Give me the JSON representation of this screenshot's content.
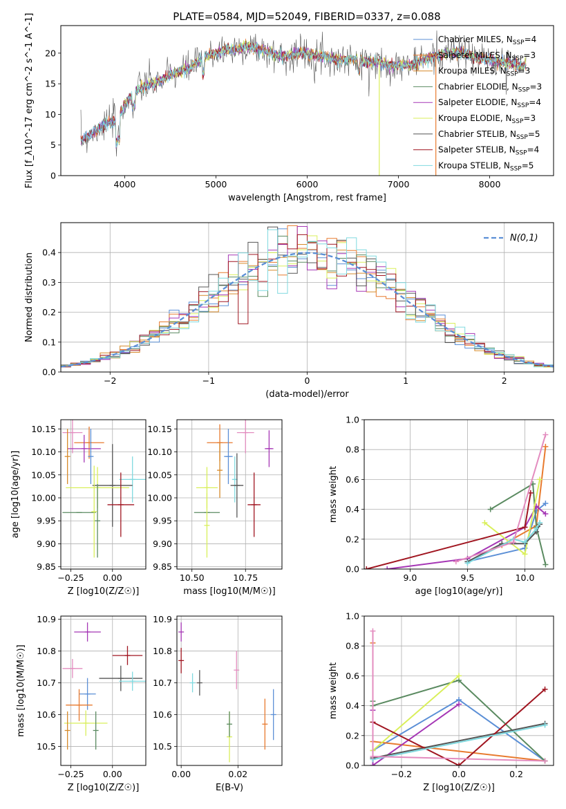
{
  "figure": {
    "title": "PLATE=0584, MJD=52049, FIBERID=0337, z=0.088"
  },
  "colors": {
    "chabrier_miles": "#5b8fd6",
    "salpeter_miles": "#e87a2e",
    "kroupa_miles": "#d68a2a",
    "chabrier_elodie": "#5a8a60",
    "salpeter_elodie": "#a536b5",
    "kroupa_elodie": "#d9ef5a",
    "chabrier_stelib": "#555555",
    "salpeter_stelib": "#a01520",
    "kroupa_stelib": "#7fd9df",
    "pink": "#e38cbf",
    "normal_curve": "#5b8fd6"
  },
  "spectrum_legend": [
    "Chabrier MILES, N_SSP=4",
    "Salpeter MILES, N_SSP=3",
    "Kroupa MILES, N_SSP=3",
    "Chabrier ELODIE, N_SSP=3",
    "Salpeter ELODIE, N_SSP=4",
    "Kroupa ELODIE, N_SSP=3",
    "Chabrier STELIB, N_SSP=5",
    "Salpeter STELIB, N_SSP=4",
    "Kroupa STELIB, N_SSP=5"
  ],
  "chart_data": [
    {
      "id": "spectrum",
      "type": "line",
      "xlabel": "wavelength [Angstrom, rest frame]",
      "ylabel": "Flux [f_λ10^-17 erg cm^-2 s^-1 A^-1]",
      "xlim": [
        3300,
        8700
      ],
      "ylim": [
        0,
        24.5
      ],
      "xticks": [
        4000,
        5000,
        6000,
        7000,
        8000
      ],
      "yticks": [
        0,
        5,
        10,
        15,
        20
      ],
      "envelope": {
        "x": [
          3500,
          3600,
          3700,
          3800,
          3900,
          4000,
          4100,
          4200,
          4300,
          4400,
          4500,
          4600,
          4700,
          4800,
          4900,
          5000,
          5100,
          5200,
          5300,
          5400,
          5500,
          5600,
          5700,
          5800,
          5900,
          6000,
          6100,
          6200,
          6300,
          6400,
          6500,
          6600,
          6700,
          6800,
          6900,
          7000,
          7100,
          7200,
          7300,
          7400,
          7500,
          7600,
          7700,
          7800,
          7900,
          8000,
          8100,
          8200,
          8300,
          8400
        ],
        "y": [
          5.5,
          6.5,
          7.5,
          8.5,
          9.0,
          11.5,
          13.5,
          14.5,
          15.0,
          15.5,
          16.5,
          17.0,
          17.5,
          18.5,
          19.5,
          20.0,
          20.5,
          20.5,
          21.0,
          21.0,
          20.5,
          20.0,
          19.5,
          19.5,
          20.0,
          20.0,
          19.5,
          19.5,
          19.0,
          19.0,
          19.0,
          18.5,
          18.5,
          18.5,
          18.0,
          18.0,
          18.0,
          18.5,
          19.0,
          19.5,
          20.0,
          20.0,
          20.0,
          19.5,
          19.0,
          19.0,
          18.5,
          18.5,
          18.0,
          18.0
        ]
      },
      "spikes": [
        {
          "x": 6790,
          "series": "kroupa_elodie"
        },
        {
          "x": 7410,
          "series": "salpeter_miles"
        }
      ]
    },
    {
      "id": "residuals",
      "type": "line",
      "xlabel": "(data-model)/error",
      "ylabel": "Normed distribution",
      "xlim": [
        -2.5,
        2.5
      ],
      "ylim": [
        0,
        0.5
      ],
      "xticks": [
        -2,
        -1,
        0,
        1,
        2
      ],
      "yticks": [
        0.0,
        0.1,
        0.2,
        0.3,
        0.4
      ],
      "legend": "N(0,1)",
      "legend_position": "top-right",
      "bin_edges_start": -2.5,
      "bin_width": 0.1,
      "bins": 50
    },
    {
      "id": "age_vs_Z",
      "type": "scatter",
      "xlabel": "Z [log10(Z/Z☉)]",
      "ylabel": "age [log10(age/yr)]",
      "xlim": [
        -0.31,
        0.2
      ],
      "ylim": [
        9.845,
        10.17
      ],
      "xticks": [
        -0.25,
        0.0
      ],
      "yticks": [
        9.85,
        9.9,
        9.95,
        10.0,
        10.05,
        10.1,
        10.15
      ],
      "points": [
        {
          "series": "pink",
          "x": -0.24,
          "xerr": 0.06,
          "y": 10.142,
          "yerr": 0.045
        },
        {
          "series": "salpeter_miles",
          "x": -0.14,
          "xerr": 0.09,
          "y": 10.12,
          "yerr": 0.035
        },
        {
          "series": "salpeter_elodie",
          "x": -0.17,
          "xerr": 0.1,
          "y": 10.107,
          "yerr": 0.03
        },
        {
          "series": "chabrier_miles",
          "x": -0.13,
          "xerr": 0.0,
          "y": 10.09,
          "yerr": 0.06
        },
        {
          "series": "kroupa_stelib",
          "x": 0.12,
          "xerr": 0.08,
          "y": 10.04,
          "yerr": 0.05
        },
        {
          "series": "chabrier_stelib",
          "x": 0.0,
          "xerr": 0.12,
          "y": 10.027,
          "yerr": 0.09
        },
        {
          "series": "kroupa_elodie",
          "x": -0.09,
          "xerr": 0.19,
          "y": 10.022,
          "yerr": 0.045
        },
        {
          "series": "salpeter_stelib",
          "x": 0.05,
          "xerr": 0.08,
          "y": 9.985,
          "yerr": 0.07
        },
        {
          "series": "chabrier_elodie",
          "x": -0.2,
          "xerr": 0.1,
          "y": 9.968,
          "yerr": 0.0
        },
        {
          "series": "kroupa_miles",
          "x": -0.27,
          "xerr": 0.0,
          "y": 10.09,
          "yerr": 0.06
        },
        {
          "series": "chabrier_elodie",
          "x": -0.09,
          "xerr": 0.0,
          "y": 9.95,
          "yerr": 0.08
        },
        {
          "series": "kroupa_elodie",
          "x": -0.11,
          "xerr": 0.0,
          "y": 9.97,
          "yerr": 0.1
        }
      ]
    },
    {
      "id": "age_vs_mass",
      "type": "scatter",
      "xlabel": "mass [log10(M/M☉)]",
      "ylabel": "",
      "xlim": [
        10.43,
        10.92
      ],
      "ylim": [
        9.845,
        10.17
      ],
      "xticks": [
        10.5,
        10.75
      ],
      "yticks": [
        9.85,
        9.9,
        9.95,
        10.0,
        10.05,
        10.1,
        10.15
      ],
      "points": [
        {
          "series": "pink",
          "x": 10.75,
          "xerr": 0.04,
          "y": 10.142,
          "yerr": 0.045
        },
        {
          "series": "salpeter_miles",
          "x": 10.63,
          "xerr": 0.06,
          "y": 10.12,
          "yerr": 0.04
        },
        {
          "series": "salpeter_elodie",
          "x": 10.86,
          "xerr": 0.02,
          "y": 10.107,
          "yerr": 0.04
        },
        {
          "series": "chabrier_miles",
          "x": 10.67,
          "xerr": 0.02,
          "y": 10.09,
          "yerr": 0.06
        },
        {
          "series": "kroupa_stelib",
          "x": 10.7,
          "xerr": 0.01,
          "y": 10.04,
          "yerr": 0.05
        },
        {
          "series": "chabrier_stelib",
          "x": 10.71,
          "xerr": 0.03,
          "y": 10.027,
          "yerr": 0.07
        },
        {
          "series": "kroupa_elodie",
          "x": 10.57,
          "xerr": 0.05,
          "y": 10.022,
          "yerr": 0.045
        },
        {
          "series": "salpeter_stelib",
          "x": 10.79,
          "xerr": 0.03,
          "y": 9.985,
          "yerr": 0.07
        },
        {
          "series": "chabrier_elodie",
          "x": 10.57,
          "xerr": 0.06,
          "y": 9.968,
          "yerr": 0.0
        },
        {
          "series": "kroupa_miles",
          "x": 10.63,
          "xerr": 0.0,
          "y": 10.06,
          "yerr": 0.06
        },
        {
          "series": "kroupa_elodie",
          "x": 10.57,
          "xerr": 0.0,
          "y": 9.94,
          "yerr": 0.07
        }
      ]
    },
    {
      "id": "massweight_vs_age",
      "type": "line",
      "xlabel": "age [log10(age/yr)]",
      "ylabel": "mass weight",
      "xlim": [
        8.6,
        10.25
      ],
      "ylim": [
        0,
        1.0
      ],
      "xticks": [
        9.0,
        9.5,
        10.0
      ],
      "yticks": [
        0.0,
        0.2,
        0.4,
        0.6,
        0.8,
        1.0
      ],
      "series": [
        {
          "name": "Chabrier MILES",
          "x": [
            9.5,
            10.0,
            10.1,
            10.18
          ],
          "y": [
            0.05,
            0.14,
            0.39,
            0.44
          ]
        },
        {
          "name": "Salpeter MILES",
          "x": [
            9.8,
            10.1,
            10.18
          ],
          "y": [
            0.16,
            0.29,
            0.82
          ]
        },
        {
          "name": "Chabrier ELODIE",
          "x": [
            9.7,
            10.07,
            10.1,
            10.18
          ],
          "y": [
            0.4,
            0.57,
            0.28,
            0.03
          ]
        },
        {
          "name": "Salpeter ELODIE",
          "x": [
            8.8,
            9.5,
            10.0,
            10.1,
            10.18
          ],
          "y": [
            0.0,
            0.07,
            0.28,
            0.42,
            0.37
          ]
        },
        {
          "name": "Kroupa ELODIE",
          "x": [
            9.65,
            10.0,
            10.13
          ],
          "y": [
            0.31,
            0.1,
            0.6
          ]
        },
        {
          "name": "Chabrier STELIB",
          "x": [
            9.5,
            9.8,
            10.0,
            10.1,
            10.13
          ],
          "y": [
            0.05,
            0.17,
            0.17,
            0.25,
            0.3
          ]
        },
        {
          "name": "Salpeter STELIB",
          "x": [
            8.62,
            10.0,
            10.05
          ],
          "y": [
            0.0,
            0.28,
            0.51
          ]
        },
        {
          "name": "Kroupa STELIB",
          "x": [
            9.5,
            9.9,
            10.0,
            10.1,
            10.13
          ],
          "y": [
            0.04,
            0.2,
            0.18,
            0.27,
            0.31
          ]
        },
        {
          "name": "pink",
          "x": [
            9.4,
            9.9,
            10.18
          ],
          "y": [
            0.05,
            0.18,
            0.9
          ]
        }
      ]
    },
    {
      "id": "mass_vs_Z",
      "type": "scatter",
      "xlabel": "Z [log10(Z/Z☉)]",
      "ylabel": "mass [log10(M/M☉)]",
      "xlim": [
        -0.31,
        0.2
      ],
      "ylim": [
        10.44,
        10.91
      ],
      "xticks": [
        -0.25,
        0.0
      ],
      "yticks": [
        10.5,
        10.6,
        10.7,
        10.8,
        10.9
      ],
      "points": [
        {
          "series": "salpeter_elodie",
          "x": -0.15,
          "xerr": 0.08,
          "y": 10.86,
          "yerr": 0.03
        },
        {
          "series": "salpeter_stelib",
          "x": 0.09,
          "xerr": 0.09,
          "y": 10.786,
          "yerr": 0.03
        },
        {
          "series": "pink",
          "x": -0.24,
          "xerr": 0.06,
          "y": 10.745,
          "yerr": 0.03
        },
        {
          "series": "chabrier_stelib",
          "x": 0.05,
          "xerr": 0.13,
          "y": 10.714,
          "yerr": 0.04
        },
        {
          "series": "kroupa_stelib",
          "x": 0.12,
          "xerr": 0.08,
          "y": 10.705,
          "yerr": 0.03
        },
        {
          "series": "chabrier_miles",
          "x": -0.15,
          "xerr": 0.05,
          "y": 10.665,
          "yerr": 0.05
        },
        {
          "series": "salpeter_miles",
          "x": -0.2,
          "xerr": 0.08,
          "y": 10.63,
          "yerr": 0.05
        },
        {
          "series": "kroupa_elodie",
          "x": -0.16,
          "xerr": 0.13,
          "y": 10.573,
          "yerr": 0.04
        },
        {
          "series": "chabrier_elodie",
          "x": -0.1,
          "xerr": 0.0,
          "y": 10.55,
          "yerr": 0.06
        },
        {
          "series": "kroupa_miles",
          "x": -0.27,
          "xerr": 0.0,
          "y": 10.55,
          "yerr": 0.06
        }
      ]
    },
    {
      "id": "mass_vs_ebv",
      "type": "scatter",
      "xlabel": "E(B-V)",
      "ylabel": "",
      "xlim": [
        -0.0015,
        0.0355
      ],
      "ylim": [
        10.44,
        10.91
      ],
      "xticks": [
        0.0,
        0.02
      ],
      "yticks": [
        10.5,
        10.6,
        10.7,
        10.8,
        10.9
      ],
      "points": [
        {
          "series": "salpeter_elodie",
          "x": 0.0,
          "y": 10.86,
          "yerr": 0.03
        },
        {
          "series": "salpeter_stelib",
          "x": 0.0,
          "y": 10.77,
          "yerr": 0.04
        },
        {
          "series": "kroupa_stelib",
          "x": 0.004,
          "y": 10.7,
          "yerr": 0.03
        },
        {
          "series": "chabrier_stelib",
          "x": 0.0065,
          "y": 10.7,
          "yerr": 0.04
        },
        {
          "series": "pink",
          "x": 0.0195,
          "y": 10.74,
          "yerr": 0.06
        },
        {
          "series": "kroupa_elodie",
          "x": 0.017,
          "y": 10.53,
          "yerr": 0.08
        },
        {
          "series": "chabrier_elodie",
          "x": 0.017,
          "y": 10.57,
          "yerr": 0.04
        },
        {
          "series": "salpeter_miles",
          "x": 0.0295,
          "y": 10.57,
          "yerr": 0.08
        },
        {
          "series": "chabrier_miles",
          "x": 0.0325,
          "y": 10.6,
          "yerr": 0.08
        }
      ]
    },
    {
      "id": "massweight_vs_Z",
      "type": "line",
      "xlabel": "Z [log10(Z/Z☉)]",
      "ylabel": "mass weight",
      "xlim": [
        -0.33,
        0.33
      ],
      "ylim": [
        0,
        1.0
      ],
      "xticks": [
        -0.2,
        0.0,
        0.2
      ],
      "yticks": [
        0.0,
        0.2,
        0.4,
        0.6,
        0.8,
        1.0
      ],
      "series": [
        {
          "name": "Chabrier MILES",
          "x": [
            -0.3,
            0.0,
            0.3
          ],
          "y": [
            0.1,
            0.44,
            0.03
          ]
        },
        {
          "name": "Salpeter MILES",
          "x": [
            -0.3,
            -0.3,
            0.3
          ],
          "y": [
            0.82,
            0.16,
            0.03
          ]
        },
        {
          "name": "Chabrier ELODIE",
          "x": [
            -0.3,
            -0.3,
            0.0,
            0.3
          ],
          "y": [
            0.43,
            0.4,
            0.57,
            0.03
          ]
        },
        {
          "name": "Salpeter ELODIE",
          "x": [
            -0.3,
            -0.3,
            0.0
          ],
          "y": [
            0.37,
            0.0,
            0.41
          ]
        },
        {
          "name": "Kroupa ELODIE",
          "x": [
            -0.3,
            0.0
          ],
          "y": [
            0.1,
            0.6
          ]
        },
        {
          "name": "Chabrier STELIB",
          "x": [
            -0.3,
            0.3
          ],
          "y": [
            0.05,
            0.28
          ]
        },
        {
          "name": "Salpeter STELIB",
          "x": [
            -0.3,
            0.0,
            0.3
          ],
          "y": [
            0.29,
            0.0,
            0.51
          ]
        },
        {
          "name": "Kroupa STELIB",
          "x": [
            -0.3,
            0.3
          ],
          "y": [
            0.04,
            0.27
          ]
        },
        {
          "name": "pink",
          "x": [
            -0.3,
            -0.3,
            0.3
          ],
          "y": [
            0.9,
            0.06,
            0.03
          ]
        }
      ]
    }
  ]
}
